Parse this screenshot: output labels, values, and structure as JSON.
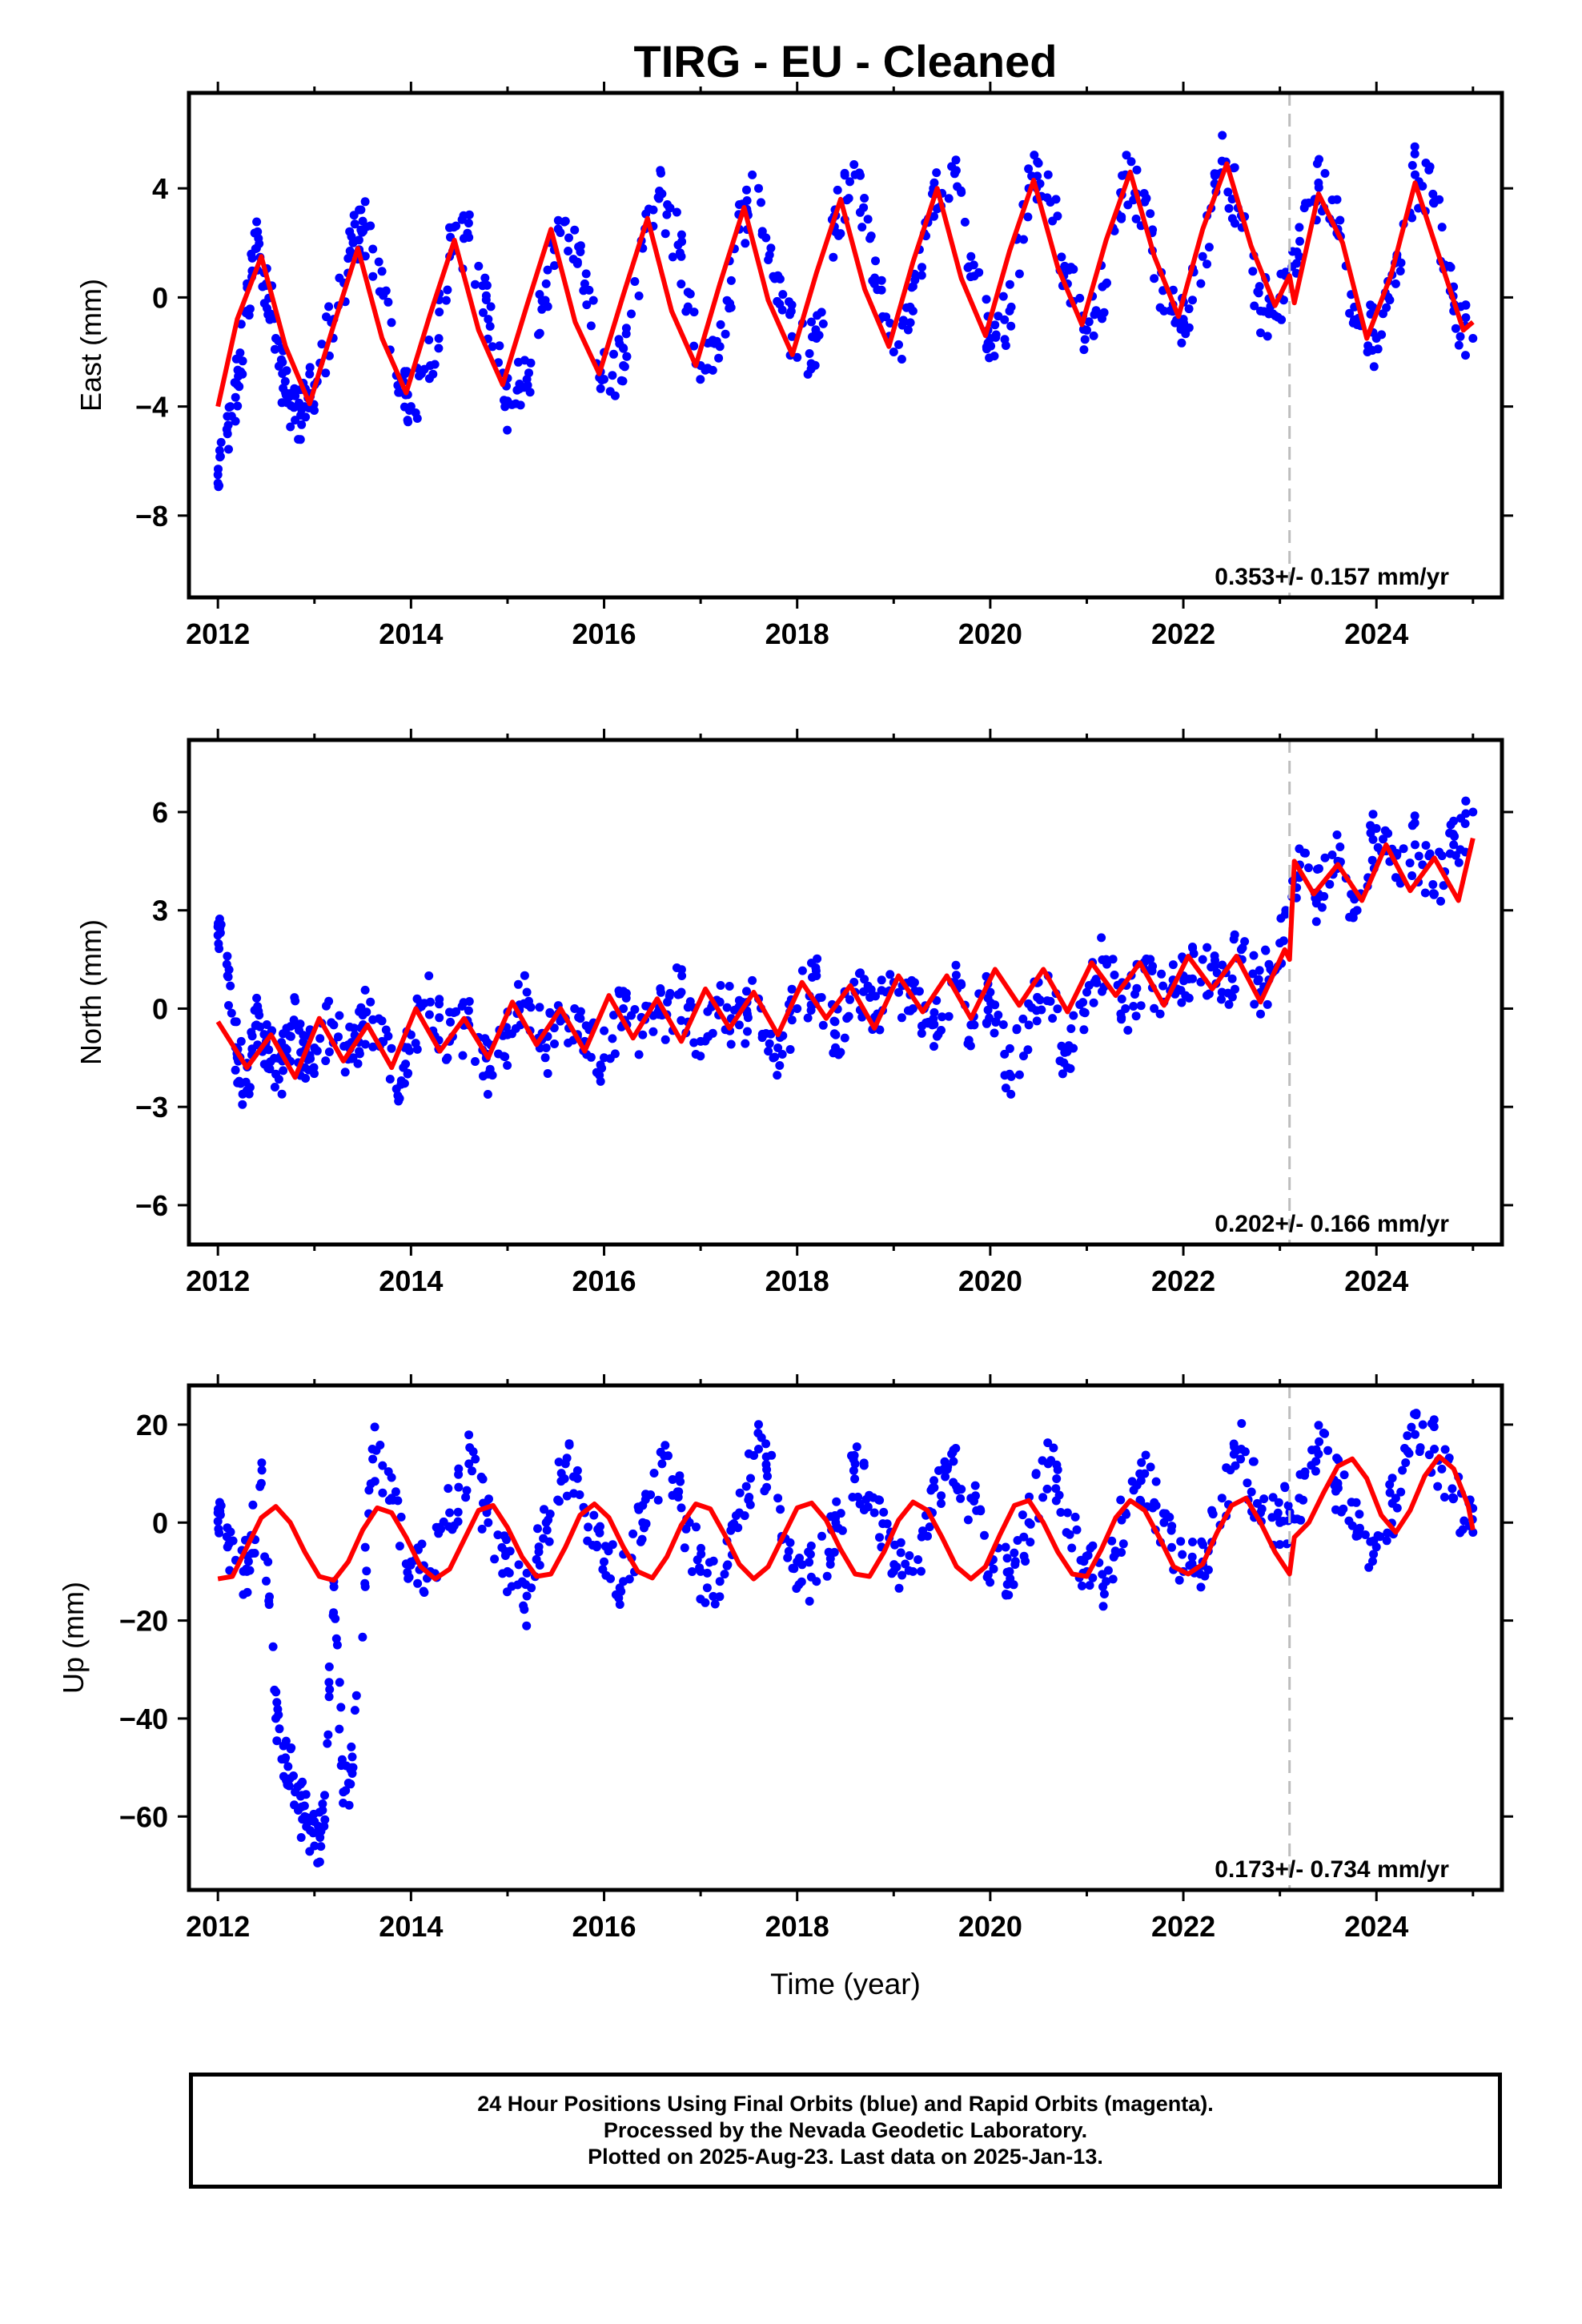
{
  "title": "TIRG  - EU - Cleaned",
  "xlabel": "Time (year)",
  "x_tick_labels": [
    "2012",
    "2014",
    "2016",
    "2018",
    "2020",
    "2022",
    "2024"
  ],
  "colors": {
    "points": "#0000ff",
    "fit": "#ff0000",
    "marker_line": "#bdbdbd",
    "axis": "#000000"
  },
  "marker_line_year": 2023.1,
  "footer": {
    "line1": "24 Hour Positions Using Final Orbits (blue) and Rapid Orbits (magenta).",
    "line2": "Processed by the Nevada Geodetic Laboratory.",
    "line3": "Plotted on 2025-Aug-23. Last data on 2025-Jan-13."
  },
  "chart_data": [
    {
      "type": "scatter",
      "ylabel": "East (mm)",
      "rate_text": "0.353+/- 0.157 mm/yr",
      "xlim": [
        2011.7,
        2025.3
      ],
      "ylim": [
        -11,
        7.5
      ],
      "yticks": [
        4,
        0,
        -4,
        -8
      ],
      "ytick_labels": [
        "4",
        "0",
        "−4",
        "−8"
      ],
      "series": [
        {
          "role": "daily positions",
          "x": [
            2012.0,
            2012.1,
            2012.2,
            2012.3,
            2012.4,
            2012.5,
            2012.6,
            2012.7,
            2012.8,
            2012.9,
            2013.0,
            2013.2,
            2013.4,
            2013.5,
            2013.7,
            2013.9,
            2014.0,
            2014.2,
            2014.4,
            2014.6,
            2014.8,
            2015.0,
            2015.2,
            2015.4,
            2015.6,
            2015.8,
            2016.0,
            2016.2,
            2016.4,
            2016.6,
            2016.8,
            2017.0,
            2017.2,
            2017.4,
            2017.6,
            2017.8,
            2018.0,
            2018.2,
            2018.4,
            2018.6,
            2018.8,
            2019.0,
            2019.2,
            2019.4,
            2019.6,
            2019.8,
            2020.0,
            2020.2,
            2020.4,
            2020.6,
            2020.8,
            2021.0,
            2021.2,
            2021.4,
            2021.6,
            2021.8,
            2022.0,
            2022.2,
            2022.4,
            2022.6,
            2022.8,
            2023.0,
            2023.2,
            2023.4,
            2023.6,
            2023.8,
            2024.0,
            2024.2,
            2024.4,
            2024.6,
            2024.8,
            2025.0
          ],
          "y": [
            -6.5,
            -5.0,
            -3.2,
            -0.5,
            1.8,
            0.5,
            -1.5,
            -3.5,
            -4.5,
            -4.0,
            -3.2,
            -0.8,
            2.0,
            2.8,
            0.2,
            -3.0,
            -4.0,
            -2.5,
            1.5,
            2.2,
            -0.8,
            -3.8,
            -3.0,
            0.5,
            2.8,
            0.5,
            -3.0,
            -2.5,
            1.8,
            3.8,
            1.5,
            -2.5,
            -1.8,
            2.5,
            4.0,
            0.8,
            -2.2,
            -1.5,
            3.0,
            4.5,
            0.5,
            -2.0,
            -0.5,
            3.8,
            4.8,
            1.5,
            -1.5,
            -0.5,
            4.0,
            4.5,
            0.5,
            -1.2,
            0.5,
            4.5,
            3.5,
            -0.5,
            -0.8,
            1.5,
            5.0,
            3.0,
            -0.5,
            0.0,
            1.5,
            4.2,
            2.5,
            -1.0,
            -1.5,
            0.5,
            4.5,
            3.5,
            -0.5,
            -1.5
          ]
        },
        {
          "role": "model fit",
          "x": [
            2012.0,
            2012.2,
            2012.45,
            2012.7,
            2012.95,
            2013.2,
            2013.45,
            2013.7,
            2013.95,
            2014.2,
            2014.45,
            2014.7,
            2014.95,
            2015.2,
            2015.45,
            2015.7,
            2015.95,
            2016.2,
            2016.45,
            2016.7,
            2016.95,
            2017.2,
            2017.45,
            2017.7,
            2017.95,
            2018.2,
            2018.45,
            2018.7,
            2018.95,
            2019.2,
            2019.45,
            2019.7,
            2019.95,
            2020.2,
            2020.45,
            2020.7,
            2020.95,
            2021.2,
            2021.45,
            2021.7,
            2021.95,
            2022.2,
            2022.45,
            2022.7,
            2022.95,
            2023.1,
            2023.15,
            2023.4,
            2023.65,
            2023.9,
            2024.15,
            2024.4,
            2024.65,
            2024.9,
            2025.0
          ],
          "y": [
            -4.0,
            -0.8,
            1.5,
            -1.8,
            -3.9,
            -1.0,
            1.8,
            -1.5,
            -3.5,
            -0.6,
            2.1,
            -1.2,
            -3.2,
            -0.3,
            2.5,
            -0.9,
            -2.8,
            0.1,
            2.9,
            -0.5,
            -2.5,
            0.5,
            3.3,
            -0.1,
            -2.1,
            0.9,
            3.6,
            0.3,
            -1.8,
            1.3,
            4.0,
            0.7,
            -1.4,
            1.7,
            4.3,
            1.1,
            -1.0,
            2.1,
            4.6,
            1.5,
            -0.7,
            2.5,
            4.9,
            1.9,
            -0.3,
            0.8,
            -0.2,
            3.8,
            2.0,
            -1.5,
            0.8,
            4.2,
            1.5,
            -1.2,
            -0.9
          ]
        }
      ]
    },
    {
      "type": "scatter",
      "ylabel": "North (mm)",
      "rate_text": "0.202+/- 0.166 mm/yr",
      "xlim": [
        2011.7,
        2025.3
      ],
      "ylim": [
        -7.2,
        8.2
      ],
      "yticks": [
        6,
        3,
        0,
        -3,
        -6
      ],
      "ytick_labels": [
        "6",
        "3",
        "0",
        "−3",
        "−6"
      ],
      "series": [
        {
          "role": "daily positions",
          "x": [
            2012.0,
            2012.1,
            2012.2,
            2012.3,
            2012.4,
            2012.5,
            2012.6,
            2012.7,
            2012.8,
            2012.9,
            2013.0,
            2013.2,
            2013.4,
            2013.5,
            2013.7,
            2013.9,
            2014.0,
            2014.2,
            2014.4,
            2014.6,
            2014.8,
            2015.0,
            2015.2,
            2015.4,
            2015.6,
            2015.8,
            2016.0,
            2016.2,
            2016.4,
            2016.6,
            2016.8,
            2017.0,
            2017.2,
            2017.4,
            2017.6,
            2017.8,
            2018.0,
            2018.2,
            2018.4,
            2018.6,
            2018.8,
            2019.0,
            2019.2,
            2019.4,
            2019.6,
            2019.8,
            2020.0,
            2020.2,
            2020.4,
            2020.6,
            2020.8,
            2021.0,
            2021.2,
            2021.4,
            2021.6,
            2021.8,
            2022.0,
            2022.2,
            2022.4,
            2022.6,
            2022.8,
            2023.0,
            2023.2,
            2023.4,
            2023.6,
            2023.8,
            2024.0,
            2024.2,
            2024.4,
            2024.6,
            2024.8,
            2025.0
          ],
          "y": [
            2.5,
            1.0,
            -1.5,
            -2.5,
            -0.5,
            -1.0,
            -2.0,
            -1.5,
            -0.5,
            -1.8,
            -1.2,
            -0.5,
            -1.5,
            -0.2,
            -1.0,
            -2.2,
            -0.8,
            0.2,
            -1.0,
            -0.5,
            -2.0,
            -0.8,
            0.5,
            -1.2,
            -0.3,
            -1.0,
            -1.5,
            0.0,
            -0.8,
            -0.2,
            0.5,
            -1.0,
            0.2,
            -0.5,
            0.3,
            -1.2,
            0.0,
            1.0,
            -0.8,
            0.5,
            -0.5,
            0.8,
            0.0,
            -0.5,
            0.8,
            -0.5,
            0.5,
            -2.0,
            -0.5,
            1.0,
            -1.8,
            0.5,
            1.5,
            0.0,
            1.2,
            0.2,
            1.0,
            1.5,
            0.5,
            1.8,
            0.5,
            2.0,
            4.0,
            3.5,
            4.5,
            3.0,
            5.5,
            4.0,
            5.0,
            3.5,
            5.0,
            6.0
          ]
        },
        {
          "role": "model fit",
          "x": [
            2012.0,
            2012.3,
            2012.55,
            2012.8,
            2013.05,
            2013.3,
            2013.55,
            2013.8,
            2014.05,
            2014.3,
            2014.55,
            2014.8,
            2015.05,
            2015.3,
            2015.55,
            2015.8,
            2016.05,
            2016.3,
            2016.55,
            2016.8,
            2017.05,
            2017.3,
            2017.55,
            2017.8,
            2018.05,
            2018.3,
            2018.55,
            2018.8,
            2019.05,
            2019.3,
            2019.55,
            2019.8,
            2020.05,
            2020.3,
            2020.55,
            2020.8,
            2021.05,
            2021.3,
            2021.55,
            2021.8,
            2022.05,
            2022.3,
            2022.55,
            2022.8,
            2023.05,
            2023.1,
            2023.15,
            2023.35,
            2023.6,
            2023.85,
            2024.1,
            2024.35,
            2024.6,
            2024.85,
            2025.0
          ],
          "y": [
            -0.4,
            -1.8,
            -0.8,
            -2.1,
            -0.3,
            -1.6,
            -0.5,
            -1.8,
            0.0,
            -1.3,
            -0.3,
            -1.5,
            0.2,
            -1.1,
            0.0,
            -1.3,
            0.4,
            -0.9,
            0.3,
            -1.0,
            0.6,
            -0.6,
            0.5,
            -0.8,
            0.8,
            -0.3,
            0.7,
            -0.6,
            1.0,
            -0.1,
            1.0,
            -0.3,
            1.2,
            0.1,
            1.2,
            -0.1,
            1.4,
            0.4,
            1.4,
            0.1,
            1.6,
            0.6,
            1.6,
            0.2,
            1.8,
            1.5,
            4.5,
            3.5,
            4.4,
            3.3,
            5.0,
            3.6,
            4.6,
            3.3,
            5.2
          ]
        }
      ]
    },
    {
      "type": "scatter",
      "ylabel": "Up (mm)",
      "rate_text": "0.173+/- 0.734 mm/yr",
      "xlim": [
        2011.7,
        2025.3
      ],
      "ylim": [
        -75,
        28
      ],
      "yticks": [
        20,
        0,
        -20,
        -40,
        -60
      ],
      "ytick_labels": [
        "20",
        "0",
        "−20",
        "−40",
        "−60"
      ],
      "series": [
        {
          "role": "daily positions",
          "x": [
            2012.0,
            2012.1,
            2012.3,
            2012.45,
            2012.6,
            2012.7,
            2012.8,
            2012.9,
            2013.0,
            2013.1,
            2013.2,
            2013.3,
            2013.4,
            2013.6,
            2013.8,
            2014.0,
            2014.2,
            2014.4,
            2014.6,
            2014.8,
            2015.0,
            2015.2,
            2015.4,
            2015.6,
            2015.8,
            2016.0,
            2016.2,
            2016.4,
            2016.6,
            2016.8,
            2017.0,
            2017.2,
            2017.4,
            2017.6,
            2017.8,
            2018.0,
            2018.2,
            2018.4,
            2018.6,
            2018.8,
            2019.0,
            2019.2,
            2019.4,
            2019.6,
            2019.8,
            2020.0,
            2020.2,
            2020.4,
            2020.6,
            2020.8,
            2021.0,
            2021.2,
            2021.4,
            2021.6,
            2021.8,
            2022.0,
            2022.2,
            2022.4,
            2022.6,
            2022.8,
            2023.0,
            2023.2,
            2023.4,
            2023.6,
            2023.8,
            2024.0,
            2024.2,
            2024.4,
            2024.6,
            2024.8,
            2025.0
          ],
          "y": [
            2.0,
            -5.0,
            -10.0,
            8.0,
            -40.0,
            -48.0,
            -55.0,
            -60.0,
            -66.0,
            -62.0,
            -12.0,
            -55.0,
            -50.0,
            15.0,
            5.0,
            -8.0,
            -10.0,
            2.0,
            12.0,
            0.0,
            -10.0,
            -15.0,
            0.0,
            12.0,
            2.0,
            -8.0,
            -12.0,
            0.0,
            12.0,
            3.0,
            -10.0,
            -12.0,
            2.0,
            15.0,
            5.0,
            -8.0,
            -12.0,
            0.0,
            12.0,
            2.0,
            -10.0,
            -10.0,
            2.0,
            14.0,
            5.0,
            -8.0,
            -10.0,
            0.0,
            12.0,
            2.0,
            -10.0,
            -12.0,
            2.0,
            10.0,
            0.0,
            -10.0,
            -8.0,
            5.0,
            15.0,
            2.0,
            0.0,
            5.0,
            14.0,
            8.0,
            -2.0,
            -5.0,
            5.0,
            18.0,
            15.0,
            5.0,
            -2.0
          ]
        },
        {
          "role": "model fit",
          "x": [
            2012.0,
            2012.15,
            2012.3,
            2012.45,
            2012.6,
            2012.75,
            2012.9,
            2013.05,
            2013.2,
            2013.35,
            2013.5,
            2013.65,
            2013.8,
            2013.95,
            2014.1,
            2014.25,
            2014.4,
            2014.55,
            2014.7,
            2014.85,
            2015.0,
            2015.15,
            2015.3,
            2015.45,
            2015.6,
            2015.75,
            2015.9,
            2016.05,
            2016.2,
            2016.35,
            2016.5,
            2016.65,
            2016.8,
            2016.95,
            2017.1,
            2017.25,
            2017.4,
            2017.55,
            2017.7,
            2017.85,
            2018.0,
            2018.15,
            2018.3,
            2018.45,
            2018.6,
            2018.75,
            2018.9,
            2019.05,
            2019.2,
            2019.35,
            2019.5,
            2019.65,
            2019.8,
            2019.95,
            2020.1,
            2020.25,
            2020.4,
            2020.55,
            2020.7,
            2020.85,
            2021.0,
            2021.15,
            2021.3,
            2021.45,
            2021.6,
            2021.75,
            2021.9,
            2022.05,
            2022.2,
            2022.35,
            2022.5,
            2022.65,
            2022.8,
            2022.95,
            2023.1,
            2023.15,
            2023.3,
            2023.45,
            2023.6,
            2023.75,
            2023.9,
            2024.05,
            2024.2,
            2024.35,
            2024.5,
            2024.65,
            2024.8,
            2024.95,
            2025.0
          ],
          "y": [
            -11.5,
            -11.0,
            -5.0,
            1.0,
            3.3,
            0.0,
            -6.0,
            -11.0,
            -11.8,
            -8.0,
            -1.5,
            3.0,
            2.0,
            -3.0,
            -9.0,
            -11.5,
            -9.5,
            -3.5,
            2.5,
            3.5,
            -1.0,
            -7.0,
            -11.0,
            -10.5,
            -5.0,
            1.5,
            3.8,
            1.0,
            -5.0,
            -10.0,
            -11.3,
            -7.0,
            -0.5,
            3.8,
            2.8,
            -2.5,
            -8.5,
            -11.5,
            -9.0,
            -3.0,
            3.0,
            4.0,
            0.5,
            -5.5,
            -10.5,
            -11.0,
            -6.0,
            0.5,
            4.2,
            2.5,
            -3.0,
            -9.0,
            -11.5,
            -9.0,
            -2.5,
            3.5,
            4.5,
            0.0,
            -6.0,
            -10.5,
            -11.0,
            -5.5,
            1.0,
            4.5,
            2.5,
            -3.0,
            -9.0,
            -10.5,
            -8.5,
            -2.0,
            3.5,
            5.0,
            0.0,
            -6.0,
            -10.5,
            -3.0,
            0.0,
            6.0,
            11.5,
            13.0,
            9.0,
            1.5,
            -2.0,
            2.5,
            9.5,
            13.5,
            11.0,
            3.5,
            -1.5
          ]
        }
      ]
    }
  ]
}
